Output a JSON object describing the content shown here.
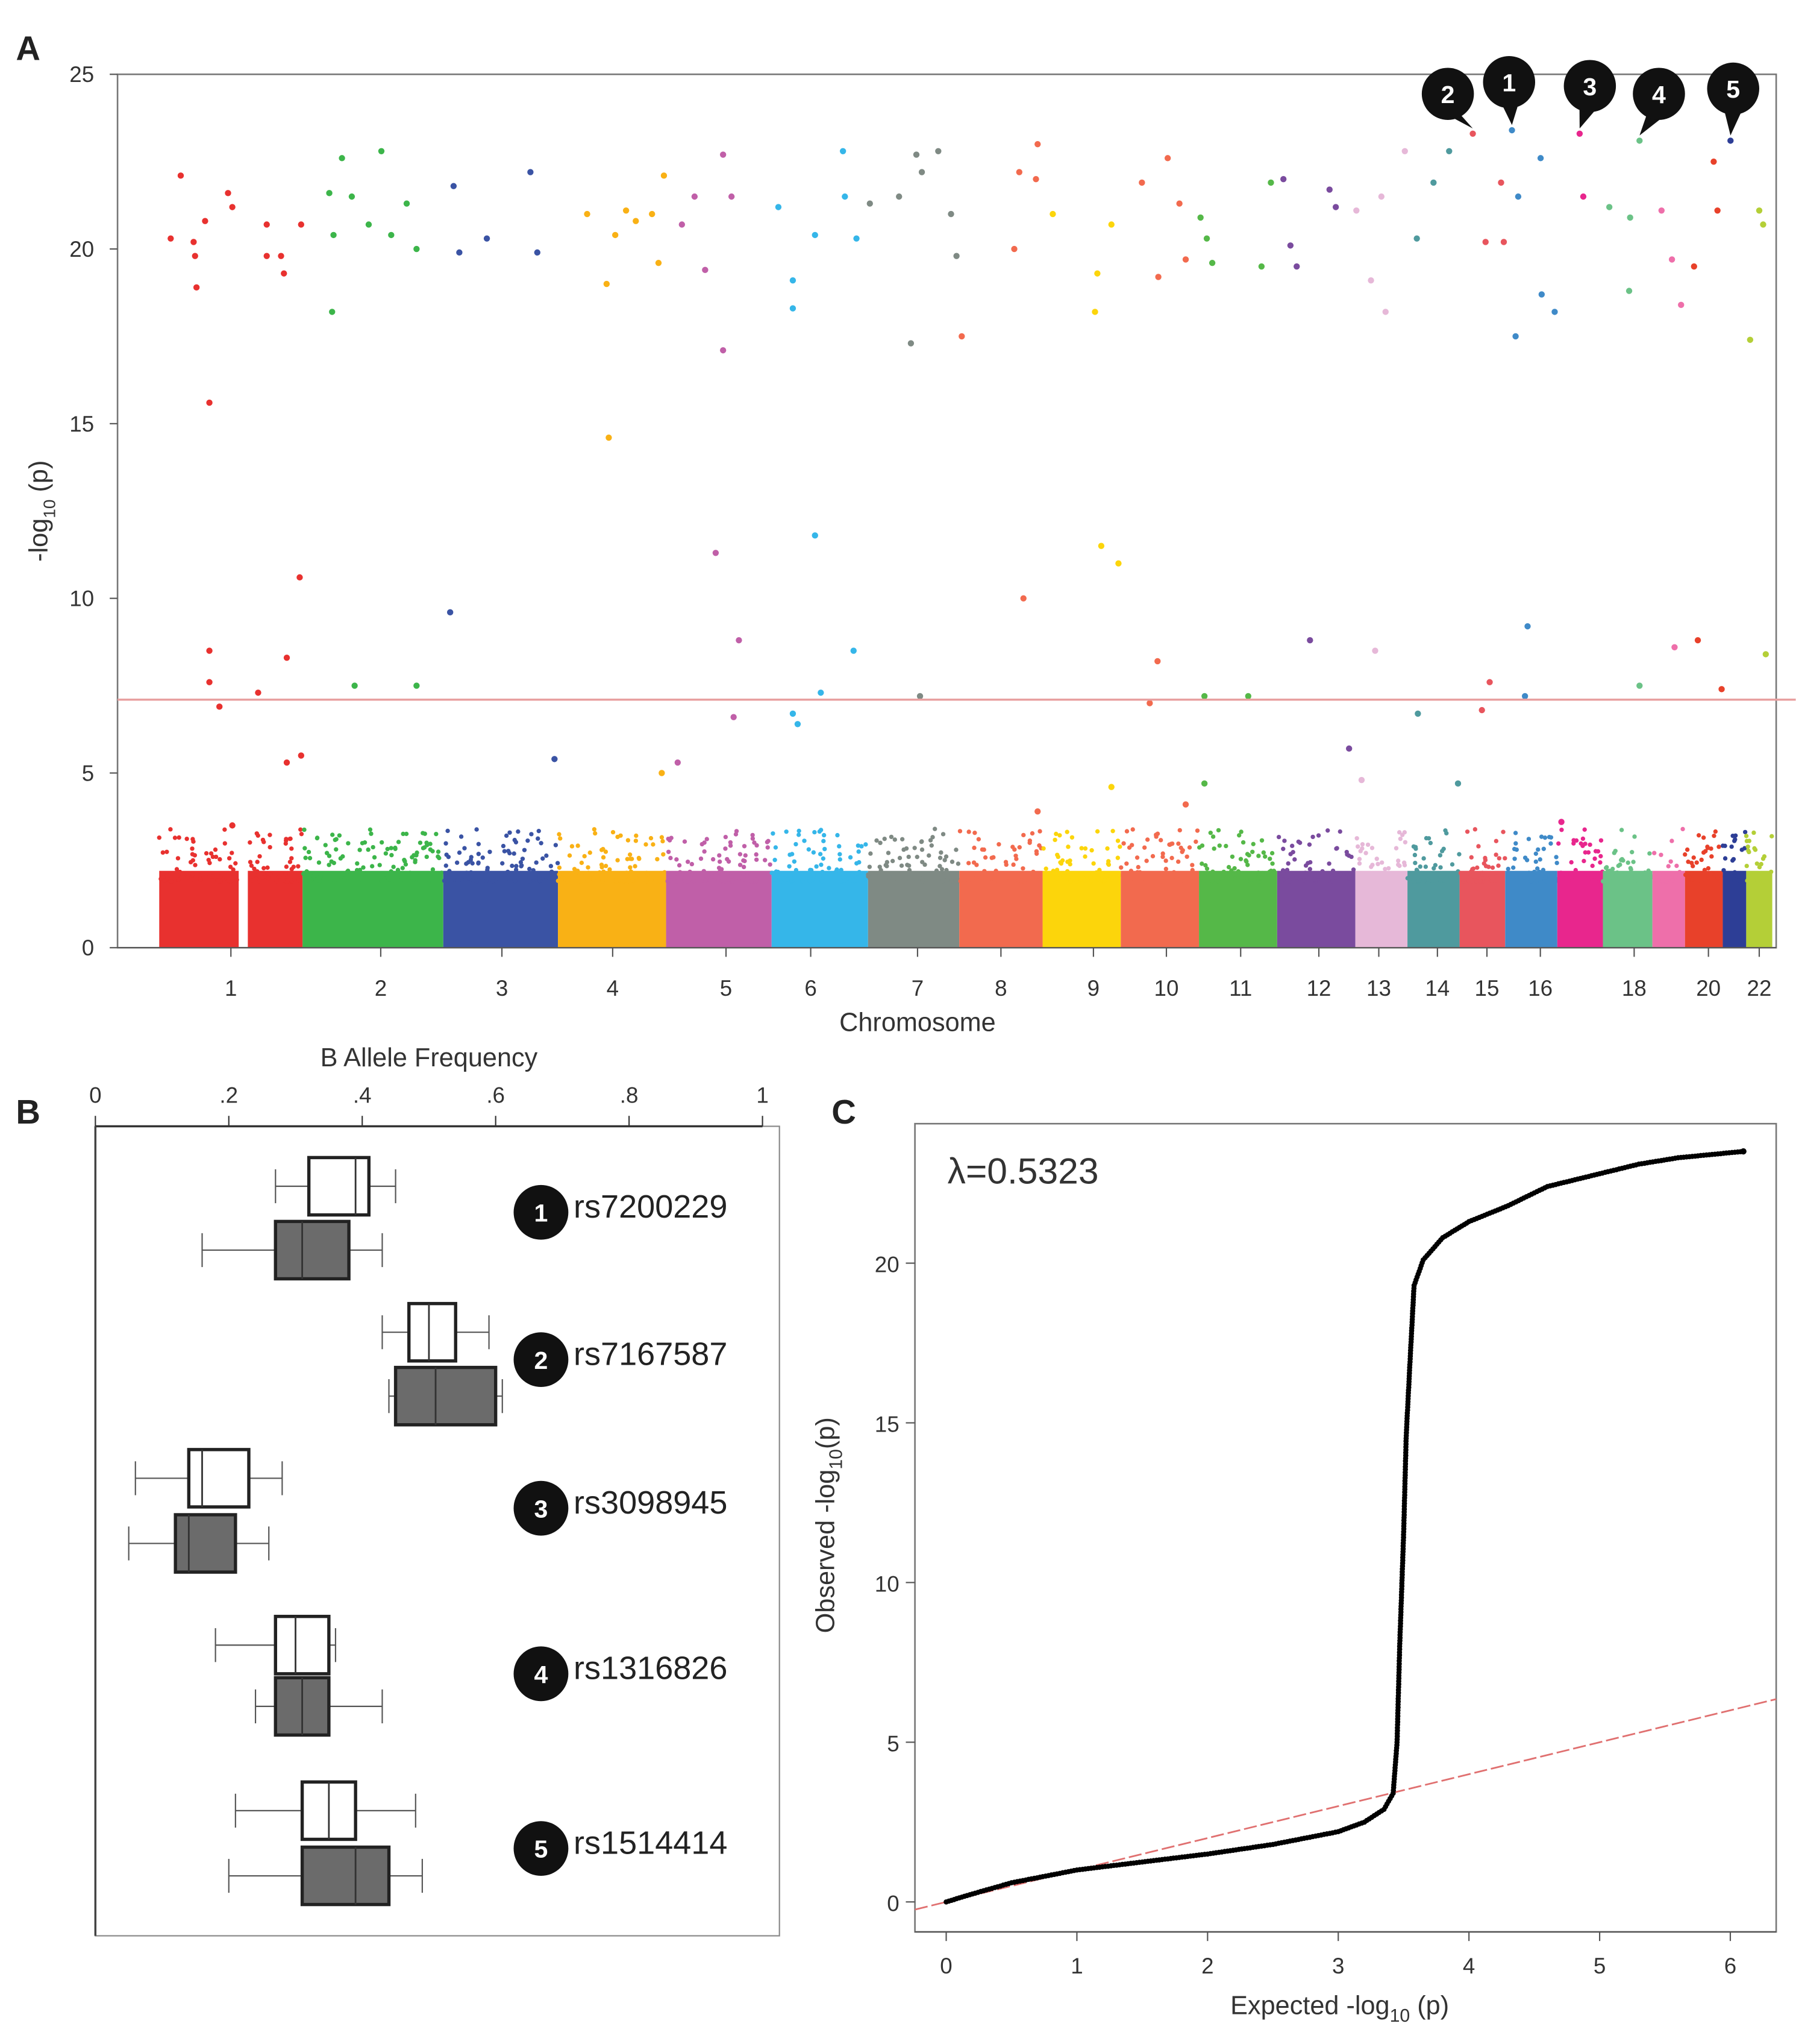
{
  "chart_data": [
    {
      "panel": "A",
      "type": "scatter",
      "subtype": "manhattan",
      "xlabel": "Chromosome",
      "ylabel": {
        "prefix": "-log",
        "sub": "10",
        "suffix": " (p)"
      },
      "ylim": [
        0,
        25
      ],
      "yticks": [
        "0",
        "5",
        "10",
        "15",
        "20",
        "25"
      ],
      "xtick_labels": [
        "1",
        "2",
        "3",
        "4",
        "5",
        "6",
        "7",
        "8",
        "9",
        "10",
        "11",
        "12",
        "13",
        "14",
        "15",
        "16",
        "18",
        "20",
        "22"
      ],
      "significance_threshold": 7.1,
      "threshold_color": "#e8a0a0",
      "chromosome_colors": [
        "#e8312f",
        "#3cb54a",
        "#3a53a4",
        "#f9b115",
        "#c05fa8",
        "#35b6e9",
        "#7f8a84",
        "#f26a4e",
        "#fcd50b",
        "#f26a4e",
        "#55b848",
        "#7a4b9e",
        "#e6b8d8",
        "#4f9a9e",
        "#e8555d",
        "#3f8ac8",
        "#e8268d",
        "#6bc287",
        "#ee6faa",
        "#e8412a",
        "#2d3e96",
        "#b4cf37"
      ],
      "background_band_max": 3.0,
      "points_note_fields": [
        "chromosome",
        "relative_position_in_chromosome",
        "neg_log10_p"
      ],
      "points": [
        [
          1,
          0.08,
          20.3
        ],
        [
          1,
          0.15,
          22.1
        ],
        [
          1,
          0.24,
          20.2
        ],
        [
          1,
          0.25,
          19.8
        ],
        [
          1,
          0.32,
          20.8
        ],
        [
          1,
          0.26,
          18.9
        ],
        [
          1,
          0.35,
          15.6
        ],
        [
          1,
          0.35,
          8.5
        ],
        [
          1,
          0.35,
          7.6
        ],
        [
          1,
          0.42,
          6.9
        ],
        [
          1,
          0.48,
          21.6
        ],
        [
          1,
          0.51,
          21.2
        ],
        [
          1,
          0.51,
          3.5
        ],
        [
          1,
          0.75,
          20.7
        ],
        [
          1,
          0.75,
          19.8
        ],
        [
          1,
          0.85,
          19.8
        ],
        [
          1,
          0.87,
          19.3
        ],
        [
          1,
          0.99,
          20.7
        ],
        [
          1,
          0.69,
          7.3
        ],
        [
          1,
          0.89,
          8.3
        ],
        [
          1,
          0.98,
          10.6
        ],
        [
          1,
          0.89,
          5.3
        ],
        [
          1,
          0.99,
          5.5
        ],
        [
          2,
          0.19,
          21.6
        ],
        [
          2,
          0.21,
          18.2
        ],
        [
          2,
          0.28,
          22.6
        ],
        [
          2,
          0.35,
          21.5
        ],
        [
          2,
          0.22,
          20.4
        ],
        [
          2,
          0.37,
          7.5
        ],
        [
          2,
          0.56,
          22.8
        ],
        [
          2,
          0.63,
          20.4
        ],
        [
          2,
          0.74,
          21.3
        ],
        [
          2,
          0.81,
          7.5
        ],
        [
          2,
          0.81,
          20.0
        ],
        [
          2,
          0.47,
          20.7
        ],
        [
          3,
          0.09,
          21.8
        ],
        [
          3,
          0.06,
          9.6
        ],
        [
          3,
          0.14,
          19.9
        ],
        [
          3,
          0.38,
          20.3
        ],
        [
          3,
          0.76,
          22.2
        ],
        [
          3,
          0.82,
          19.9
        ],
        [
          3,
          0.97,
          5.4
        ],
        [
          4,
          0.27,
          21.0
        ],
        [
          4,
          0.45,
          19.0
        ],
        [
          4,
          0.47,
          14.6
        ],
        [
          4,
          0.53,
          20.4
        ],
        [
          4,
          0.63,
          21.1
        ],
        [
          4,
          0.72,
          20.8
        ],
        [
          4,
          0.87,
          21.0
        ],
        [
          4,
          0.93,
          19.6
        ],
        [
          4,
          0.98,
          22.1
        ],
        [
          4,
          0.96,
          5.0
        ],
        [
          5,
          0.11,
          5.3
        ],
        [
          5,
          0.15,
          20.7
        ],
        [
          5,
          0.27,
          21.5
        ],
        [
          5,
          0.37,
          19.4
        ],
        [
          5,
          0.47,
          11.3
        ],
        [
          5,
          0.54,
          22.7
        ],
        [
          5,
          0.54,
          17.1
        ],
        [
          5,
          0.62,
          21.5
        ],
        [
          5,
          0.69,
          8.8
        ],
        [
          5,
          0.64,
          6.6
        ],
        [
          6,
          0.07,
          21.2
        ],
        [
          6,
          0.22,
          19.1
        ],
        [
          6,
          0.22,
          18.3
        ],
        [
          6,
          0.22,
          6.7
        ],
        [
          6,
          0.45,
          11.8
        ],
        [
          6,
          0.45,
          20.4
        ],
        [
          6,
          0.74,
          22.8
        ],
        [
          6,
          0.76,
          21.5
        ],
        [
          6,
          0.88,
          20.3
        ],
        [
          6,
          0.85,
          8.5
        ],
        [
          6,
          0.51,
          7.3
        ],
        [
          6,
          0.27,
          6.4
        ],
        [
          7,
          0.02,
          21.3
        ],
        [
          7,
          0.34,
          21.5
        ],
        [
          7,
          0.47,
          17.3
        ],
        [
          7,
          0.53,
          22.7
        ],
        [
          7,
          0.59,
          22.2
        ],
        [
          7,
          0.77,
          22.8
        ],
        [
          7,
          0.57,
          7.2
        ],
        [
          7,
          0.97,
          19.8
        ],
        [
          7,
          0.91,
          21.0
        ],
        [
          8,
          0.03,
          17.5
        ],
        [
          8,
          0.66,
          20.0
        ],
        [
          8,
          0.72,
          22.2
        ],
        [
          8,
          0.94,
          23.0
        ],
        [
          8,
          0.92,
          22.0
        ],
        [
          8,
          0.77,
          10.0
        ],
        [
          8,
          0.94,
          3.9
        ],
        [
          9,
          0.13,
          21.0
        ],
        [
          9,
          0.67,
          18.2
        ],
        [
          9,
          0.7,
          19.3
        ],
        [
          9,
          0.75,
          11.5
        ],
        [
          9,
          0.88,
          20.7
        ],
        [
          9,
          0.97,
          11.0
        ],
        [
          9,
          0.88,
          4.6
        ],
        [
          10,
          0.27,
          21.9
        ],
        [
          10,
          0.48,
          19.2
        ],
        [
          10,
          0.6,
          22.6
        ],
        [
          10,
          0.47,
          8.2
        ],
        [
          10,
          0.37,
          7.0
        ],
        [
          10,
          0.83,
          19.7
        ],
        [
          10,
          0.83,
          4.1
        ],
        [
          10,
          0.75,
          21.3
        ],
        [
          11,
          0.02,
          20.9
        ],
        [
          11,
          0.1,
          20.3
        ],
        [
          11,
          0.17,
          19.6
        ],
        [
          11,
          0.07,
          7.2
        ],
        [
          11,
          0.63,
          7.2
        ],
        [
          11,
          0.07,
          4.7
        ],
        [
          11,
          0.92,
          21.9
        ],
        [
          11,
          0.8,
          19.5
        ],
        [
          12,
          0.08,
          22.0
        ],
        [
          12,
          0.17,
          20.1
        ],
        [
          12,
          0.25,
          19.5
        ],
        [
          12,
          0.42,
          8.8
        ],
        [
          12,
          0.67,
          21.7
        ],
        [
          12,
          0.75,
          21.2
        ],
        [
          12,
          0.92,
          5.7
        ],
        [
          13,
          0.02,
          21.1
        ],
        [
          13,
          0.3,
          19.1
        ],
        [
          13,
          0.58,
          18.2
        ],
        [
          13,
          0.38,
          8.5
        ],
        [
          13,
          0.5,
          21.5
        ],
        [
          13,
          0.12,
          4.8
        ],
        [
          13,
          0.95,
          22.8
        ],
        [
          14,
          0.18,
          20.3
        ],
        [
          14,
          0.2,
          6.7
        ],
        [
          14,
          0.5,
          21.9
        ],
        [
          14,
          0.8,
          22.8
        ],
        [
          14,
          0.97,
          4.7
        ],
        [
          15,
          0.29,
          23.3
        ],
        [
          15,
          0.57,
          20.2
        ],
        [
          15,
          0.49,
          6.8
        ],
        [
          15,
          0.66,
          7.6
        ],
        [
          15,
          0.91,
          21.9
        ],
        [
          15,
          0.97,
          20.2
        ],
        [
          16,
          0.13,
          23.4
        ],
        [
          16,
          0.2,
          17.5
        ],
        [
          16,
          0.25,
          21.5
        ],
        [
          16,
          0.43,
          9.2
        ],
        [
          16,
          0.38,
          7.2
        ],
        [
          16,
          0.68,
          22.6
        ],
        [
          16,
          0.7,
          18.7
        ],
        [
          16,
          0.95,
          18.2
        ],
        [
          17,
          0.49,
          23.3
        ],
        [
          17,
          0.57,
          21.5
        ],
        [
          17,
          0.09,
          3.6
        ],
        [
          18,
          0.13,
          21.2
        ],
        [
          18,
          0.53,
          18.8
        ],
        [
          18,
          0.55,
          20.9
        ],
        [
          18,
          0.74,
          23.1
        ],
        [
          18,
          0.74,
          7.5
        ],
        [
          19,
          0.28,
          21.1
        ],
        [
          19,
          0.6,
          19.7
        ],
        [
          19,
          0.88,
          18.4
        ],
        [
          19,
          0.68,
          8.6
        ],
        [
          20,
          0.24,
          19.5
        ],
        [
          20,
          0.34,
          8.8
        ],
        [
          20,
          0.76,
          22.5
        ],
        [
          20,
          0.86,
          21.1
        ],
        [
          20,
          0.97,
          7.4
        ],
        [
          21,
          0.33,
          23.1
        ],
        [
          22,
          0.5,
          21.1
        ],
        [
          22,
          0.65,
          20.7
        ],
        [
          22,
          0.15,
          17.4
        ],
        [
          22,
          0.75,
          8.4
        ]
      ],
      "annotations": [
        {
          "label": "2",
          "chromosome": 15,
          "position": 0.29,
          "value": 23.3
        },
        {
          "label": "1",
          "chromosome": 16,
          "position": 0.13,
          "value": 23.4
        },
        {
          "label": "3",
          "chromosome": 17,
          "position": 0.49,
          "value": 23.3
        },
        {
          "label": "4",
          "chromosome": 18,
          "position": 0.74,
          "value": 23.1
        },
        {
          "label": "5",
          "chromosome": 21,
          "position": 0.33,
          "value": 23.1
        }
      ]
    },
    {
      "panel": "B",
      "type": "boxplot",
      "xlabel": "B Allele Frequency",
      "xlim": [
        0,
        1
      ],
      "xticks": [
        "0",
        ".2",
        ".4",
        ".6",
        ".8",
        "1"
      ],
      "xtick_values": [
        0,
        0.2,
        0.4,
        0.6,
        0.8,
        1
      ],
      "group_colors": [
        "#ffffff",
        "#6b6b6b"
      ],
      "snps": [
        {
          "badge": "1",
          "name": "rs7200229",
          "boxes": [
            {
              "min": 0.27,
              "q1": 0.32,
              "median": 0.39,
              "q3": 0.41,
              "max": 0.45
            },
            {
              "min": 0.16,
              "q1": 0.27,
              "median": 0.31,
              "q3": 0.38,
              "max": 0.43
            }
          ]
        },
        {
          "badge": "2",
          "name": "rs7167587",
          "boxes": [
            {
              "min": 0.43,
              "q1": 0.47,
              "median": 0.5,
              "q3": 0.54,
              "max": 0.59
            },
            {
              "min": 0.44,
              "q1": 0.45,
              "median": 0.51,
              "q3": 0.6,
              "max": 0.61
            }
          ]
        },
        {
          "badge": "3",
          "name": "rs3098945",
          "boxes": [
            {
              "min": 0.06,
              "q1": 0.14,
              "median": 0.16,
              "q3": 0.23,
              "max": 0.28
            },
            {
              "min": 0.05,
              "q1": 0.12,
              "median": 0.14,
              "q3": 0.21,
              "max": 0.26
            }
          ]
        },
        {
          "badge": "4",
          "name": "rs1316826",
          "boxes": [
            {
              "min": 0.18,
              "q1": 0.27,
              "median": 0.3,
              "q3": 0.35,
              "max": 0.36
            },
            {
              "min": 0.24,
              "q1": 0.27,
              "median": 0.31,
              "q3": 0.35,
              "max": 0.43
            }
          ]
        },
        {
          "badge": "5",
          "name": "rs1514414",
          "boxes": [
            {
              "min": 0.21,
              "q1": 0.31,
              "median": 0.35,
              "q3": 0.39,
              "max": 0.48
            },
            {
              "min": 0.2,
              "q1": 0.31,
              "median": 0.39,
              "q3": 0.44,
              "max": 0.49
            }
          ]
        }
      ]
    },
    {
      "panel": "C",
      "type": "scatter",
      "subtype": "qq",
      "annotation": "λ=0.5323",
      "xlabel": {
        "prefix": "Expected  -log",
        "sub": "10",
        "suffix": " (p)"
      },
      "ylabel": {
        "prefix": "Observed  -log",
        "sub": "10",
        "suffix": "(p)"
      },
      "xlim": [
        0,
        6.35
      ],
      "ylim": [
        0,
        25
      ],
      "xticks": [
        "0",
        "1",
        "2",
        "3",
        "4",
        "5",
        "6"
      ],
      "yticks": [
        "0",
        "5",
        "10",
        "15",
        "20"
      ],
      "reference_line": "y = x",
      "reference_color": "#e07070",
      "curve": [
        [
          0,
          0
        ],
        [
          0.2,
          0.25
        ],
        [
          0.5,
          0.6
        ],
        [
          1,
          1.0
        ],
        [
          1.5,
          1.25
        ],
        [
          2,
          1.5
        ],
        [
          2.5,
          1.8
        ],
        [
          3,
          2.2
        ],
        [
          3.2,
          2.5
        ],
        [
          3.35,
          2.9
        ],
        [
          3.42,
          3.4
        ],
        [
          3.45,
          5
        ],
        [
          3.47,
          8
        ],
        [
          3.5,
          11.5
        ],
        [
          3.52,
          14.6
        ],
        [
          3.55,
          17
        ],
        [
          3.58,
          19.3
        ],
        [
          3.65,
          20.1
        ],
        [
          3.8,
          20.8
        ],
        [
          4,
          21.3
        ],
        [
          4.3,
          21.8
        ],
        [
          4.6,
          22.4
        ],
        [
          5,
          22.8
        ],
        [
          5.3,
          23.1
        ],
        [
          5.6,
          23.3
        ],
        [
          6.1,
          23.5
        ]
      ]
    }
  ],
  "labels": {
    "panel_a": "A",
    "panel_b": "B",
    "panel_c": "C"
  }
}
